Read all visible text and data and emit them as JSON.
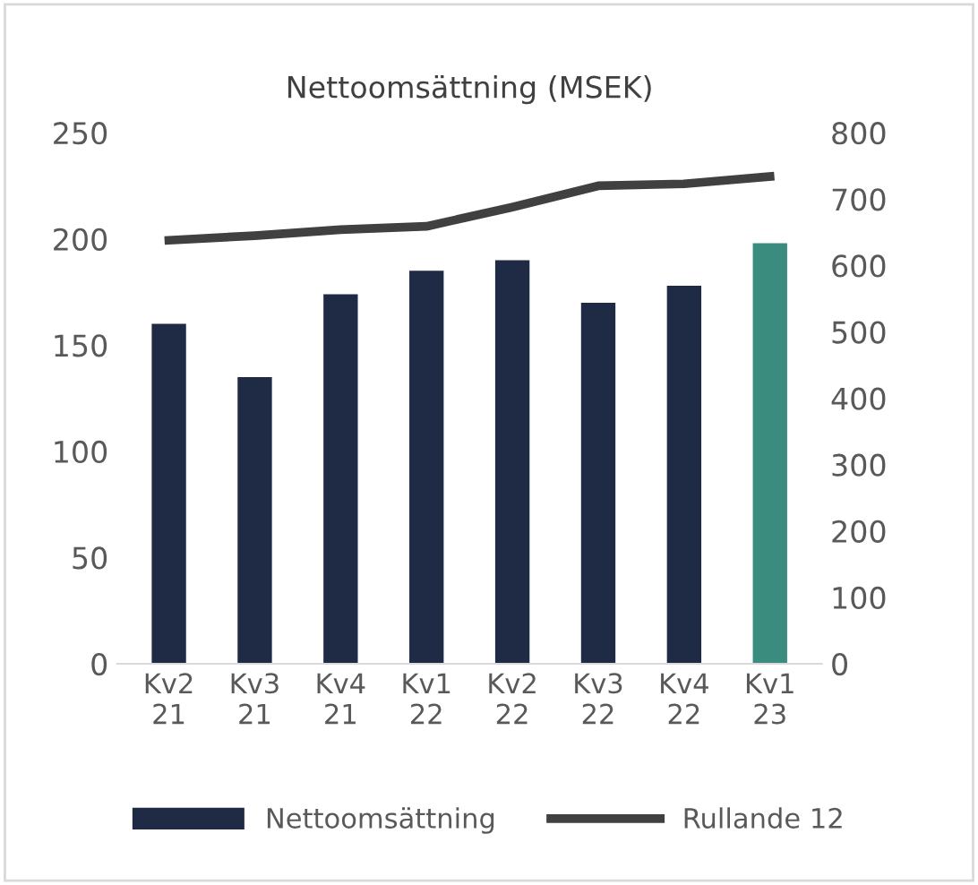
{
  "chart_data": {
    "type": "bar",
    "title": "Nettoomsättning (MSEK)",
    "categories": [
      "Kv2\n21",
      "Kv3\n21",
      "Kv4\n21",
      "Kv1\n22",
      "Kv2\n22",
      "Kv3\n22",
      "Kv4\n22",
      "Kv1\n23"
    ],
    "series": [
      {
        "name": "Nettoomsättning",
        "color": "#1f2a44",
        "colors": [
          "#1f2a44",
          "#1f2a44",
          "#1f2a44",
          "#1f2a44",
          "#1f2a44",
          "#1f2a44",
          "#1f2a44",
          "#3a8c7e"
        ],
        "values": [
          160,
          135,
          174,
          185,
          190,
          170,
          178,
          198
        ]
      },
      {
        "name": "Rullande 12",
        "type": "line",
        "axis": "y2",
        "color": "#404040",
        "values": [
          638,
          645,
          654,
          659,
          688,
          720,
          723,
          734
        ]
      }
    ],
    "ylim": [
      0,
      250
    ],
    "yticks": [
      0,
      50,
      100,
      150,
      200,
      250
    ],
    "y2lim": [
      0,
      800
    ],
    "y2ticks": [
      0,
      100,
      200,
      300,
      400,
      500,
      600,
      700,
      800
    ],
    "grid": false,
    "legend": "bottom"
  }
}
